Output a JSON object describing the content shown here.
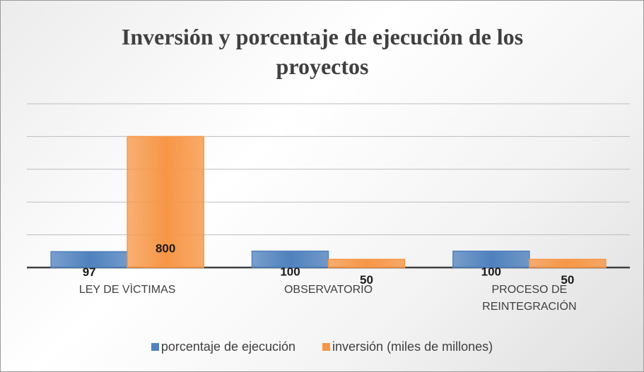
{
  "chart_data": {
    "type": "bar",
    "title": "Inversión y porcentaje de ejecución de los proyectos",
    "categories": [
      "LEY DE VÌCTIMAS",
      "OBSERVATORIO",
      "PROCESO DE REINTEGRACIÓN"
    ],
    "series": [
      {
        "name": "porcentaje de ejecución",
        "color": "#4f81bd",
        "values": [
          97,
          100,
          100
        ]
      },
      {
        "name": "inversión (miles de millones)",
        "color": "#f79646",
        "values": [
          800,
          50,
          50
        ]
      }
    ],
    "ylim": [
      0,
      1000
    ],
    "yticks": [
      0,
      200,
      400,
      600,
      800,
      1000
    ],
    "grid": true,
    "legend": "bottom"
  }
}
